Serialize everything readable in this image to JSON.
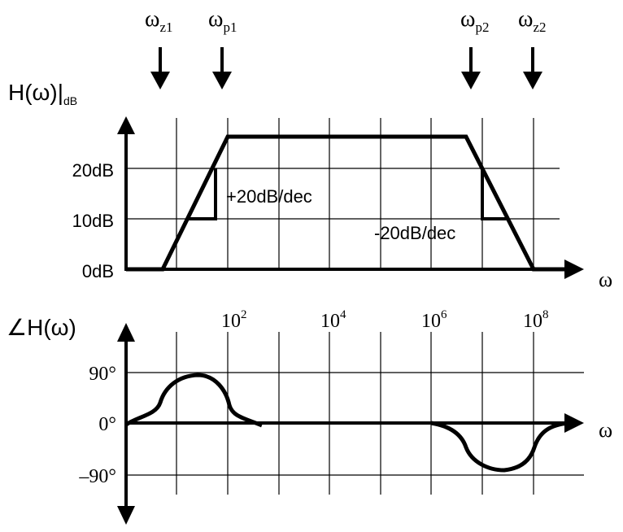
{
  "markers": [
    {
      "id": "wz1",
      "base": "ω",
      "sub": "z1"
    },
    {
      "id": "wp1",
      "base": "ω",
      "sub": "p1"
    },
    {
      "id": "wp2",
      "base": "ω",
      "sub": "p2"
    },
    {
      "id": "wz2",
      "base": "ω",
      "sub": "z2"
    }
  ],
  "magnitude": {
    "ylabel_main": "H(ω)|",
    "ylabel_sub": "dB",
    "y_ticks": [
      "20dB",
      "10dB",
      "0dB"
    ],
    "x_axis_label": "ω",
    "slope_up": "+20dB/dec",
    "slope_down": "-20dB/dec"
  },
  "freq_ticks": [
    {
      "base": "10",
      "exp": "2"
    },
    {
      "base": "10",
      "exp": "4"
    },
    {
      "base": "10",
      "exp": "6"
    },
    {
      "base": "10",
      "exp": "8"
    }
  ],
  "phase": {
    "ylabel": "∠H(ω)",
    "y_ticks": [
      "90°",
      "0°",
      "–90°"
    ],
    "x_axis_label": "ω"
  }
}
